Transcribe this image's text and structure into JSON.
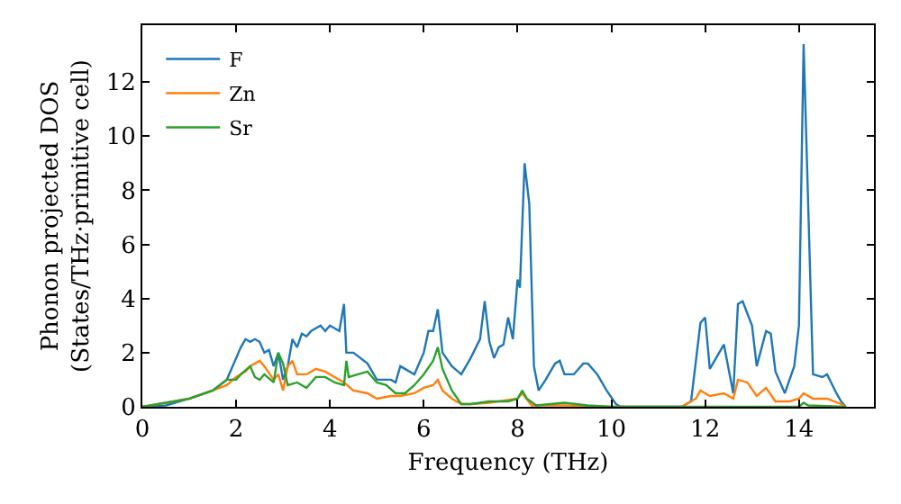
{
  "chart_data": {
    "type": "line",
    "xlabel": "Frequency (THz)",
    "ylabel": "Phonon projected DOS\n(States/THz·primitive cell)",
    "xlim": [
      0,
      15.6
    ],
    "ylim": [
      0,
      14.1
    ],
    "xticks": [
      0,
      2,
      4,
      6,
      8,
      10,
      12,
      14
    ],
    "yticks": [
      0,
      2,
      4,
      6,
      8,
      10,
      12
    ],
    "grid": false,
    "legend": "top left",
    "marker": "none",
    "line_style": "solid",
    "series": [
      {
        "name": "F",
        "color": "#1f77b4",
        "x": [
          0,
          0.5,
          1,
          1.5,
          1.8,
          2.0,
          2.1,
          2.2,
          2.3,
          2.4,
          2.5,
          2.6,
          2.7,
          2.8,
          2.9,
          3.0,
          3.1,
          3.2,
          3.3,
          3.4,
          3.5,
          3.6,
          3.8,
          3.9,
          4.0,
          4.1,
          4.2,
          4.3,
          4.35,
          4.5,
          4.8,
          5.0,
          5.3,
          5.4,
          5.5,
          5.6,
          5.8,
          6.0,
          6.1,
          6.2,
          6.3,
          6.4,
          6.6,
          6.8,
          7.0,
          7.2,
          7.3,
          7.4,
          7.5,
          7.6,
          7.7,
          7.8,
          7.9,
          8.0,
          8.05,
          8.15,
          8.25,
          8.35,
          8.45,
          8.6,
          8.8,
          8.9,
          9.0,
          9.2,
          9.4,
          9.5,
          9.7,
          9.9,
          10.1,
          10.2,
          11.5,
          11.7,
          11.9,
          12.0,
          12.1,
          12.4,
          12.6,
          12.7,
          12.8,
          13.0,
          13.1,
          13.3,
          13.4,
          13.5,
          13.7,
          13.9,
          14.0,
          14.1,
          14.3,
          14.5,
          14.6,
          14.8,
          14.9,
          15.0
        ],
        "values": [
          0,
          0.05,
          0.3,
          0.6,
          1.0,
          1.8,
          2.2,
          2.5,
          2.4,
          2.5,
          2.4,
          2.0,
          2.1,
          1.5,
          2.0,
          1.0,
          1.5,
          2.5,
          2.2,
          2.7,
          2.6,
          2.8,
          3.0,
          2.8,
          3.0,
          2.9,
          2.8,
          3.8,
          2.0,
          2.0,
          1.6,
          1.0,
          1.0,
          0.9,
          1.5,
          1.4,
          1.2,
          2.0,
          2.8,
          2.8,
          3.6,
          2.0,
          1.5,
          1.2,
          1.8,
          2.5,
          3.9,
          2.4,
          1.8,
          2.2,
          2.3,
          3.3,
          2.5,
          4.7,
          4.4,
          9.0,
          7.5,
          1.5,
          0.6,
          1.0,
          1.6,
          1.7,
          1.2,
          1.2,
          1.6,
          1.6,
          1.2,
          0.6,
          0.1,
          0,
          0,
          0.2,
          3.1,
          3.3,
          1.4,
          2.3,
          0.5,
          3.8,
          3.9,
          3.0,
          1.5,
          2.8,
          2.7,
          1.3,
          0.5,
          1.5,
          3.0,
          13.4,
          1.2,
          1.1,
          1.2,
          0.5,
          0.2,
          0
        ]
      },
      {
        "name": "Zn",
        "color": "#ff7f0e",
        "x": [
          0,
          1,
          1.5,
          1.8,
          2.0,
          2.2,
          2.3,
          2.5,
          2.6,
          2.8,
          2.9,
          3.0,
          3.1,
          3.2,
          3.3,
          3.5,
          3.7,
          3.9,
          4.1,
          4.3,
          4.5,
          4.8,
          5.0,
          5.3,
          5.5,
          5.8,
          6.0,
          6.2,
          6.3,
          6.4,
          6.6,
          6.8,
          7.0,
          7.4,
          8.0,
          8.1,
          8.3,
          9,
          10,
          11.5,
          11.8,
          11.9,
          12.1,
          12.4,
          12.6,
          12.7,
          12.9,
          13.1,
          13.3,
          13.5,
          13.8,
          14.0,
          14.1,
          14.3,
          14.6,
          14.9,
          15.0
        ],
        "values": [
          0,
          0.3,
          0.6,
          0.8,
          1.1,
          1.3,
          1.5,
          1.7,
          1.5,
          1.0,
          1.2,
          0.6,
          1.5,
          1.7,
          1.2,
          1.2,
          1.4,
          1.3,
          1.1,
          0.9,
          0.6,
          0.5,
          0.3,
          0.4,
          0.4,
          0.5,
          0.7,
          0.8,
          1.0,
          0.6,
          0.3,
          0.1,
          0.1,
          0.15,
          0.3,
          0.5,
          0.05,
          0.05,
          0,
          0,
          0.3,
          0.6,
          0.4,
          0.5,
          0.3,
          1.0,
          0.9,
          0.4,
          0.7,
          0.2,
          0.2,
          0.3,
          0.5,
          0.3,
          0.3,
          0.1,
          0
        ]
      },
      {
        "name": "Sr",
        "color": "#2ca02c",
        "x": [
          0,
          1,
          1.5,
          1.8,
          2.0,
          2.1,
          2.3,
          2.4,
          2.5,
          2.6,
          2.8,
          2.9,
          3.0,
          3.1,
          3.3,
          3.5,
          3.7,
          3.9,
          4.1,
          4.3,
          4.35,
          4.4,
          4.6,
          4.8,
          5.0,
          5.2,
          5.4,
          5.6,
          5.8,
          6.0,
          6.2,
          6.3,
          6.4,
          6.6,
          6.8,
          7.0,
          7.4,
          7.8,
          8.0,
          8.1,
          8.2,
          8.4,
          9,
          9.5,
          10,
          14,
          14.1,
          14.2,
          15
        ],
        "values": [
          0,
          0.3,
          0.6,
          1.0,
          1.0,
          1.2,
          1.5,
          1.1,
          1.0,
          1.2,
          0.9,
          2.0,
          1.6,
          0.8,
          0.9,
          0.7,
          1.1,
          1.1,
          0.9,
          0.8,
          1.7,
          1.1,
          1.2,
          1.3,
          0.9,
          0.8,
          0.5,
          0.5,
          0.8,
          1.2,
          1.7,
          2.2,
          1.4,
          0.6,
          0.1,
          0.1,
          0.2,
          0.2,
          0.3,
          0.6,
          0.3,
          0.05,
          0.15,
          0.05,
          0,
          0,
          0.15,
          0.05,
          0
        ]
      }
    ]
  }
}
